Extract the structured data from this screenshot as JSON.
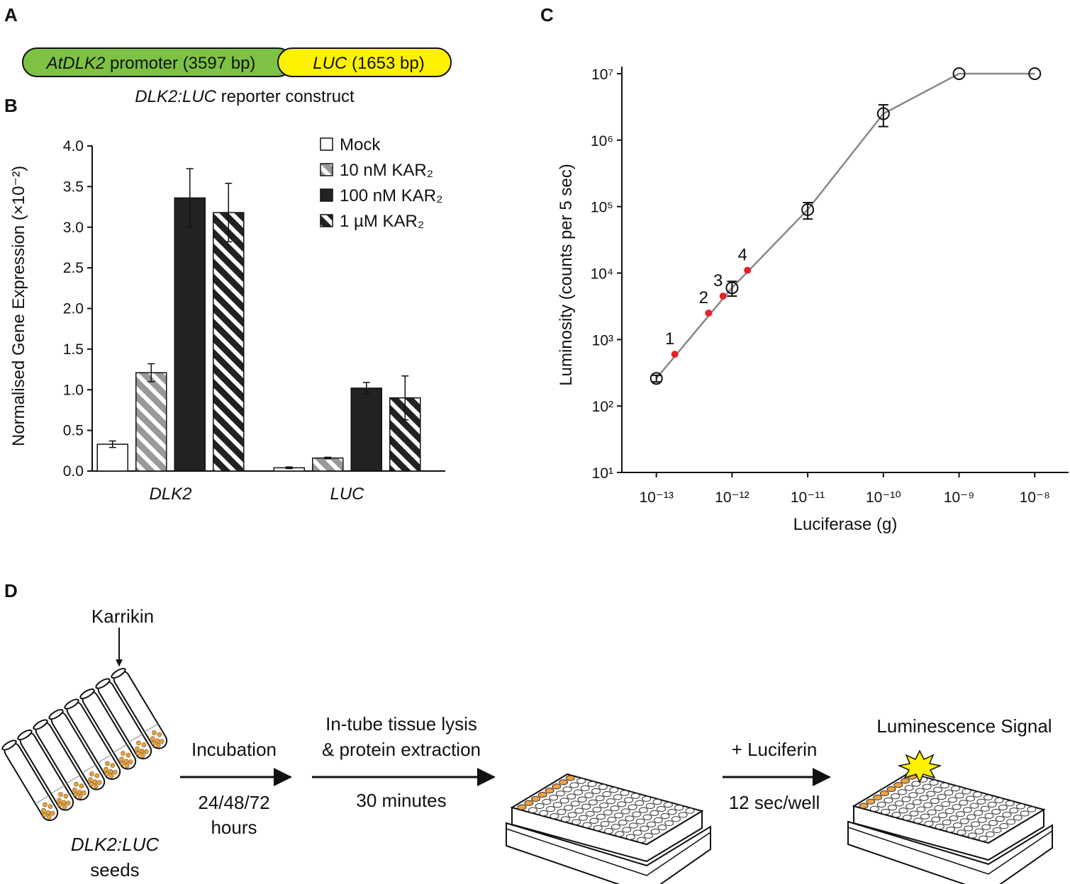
{
  "panel_labels": [
    "A",
    "B",
    "C",
    "D"
  ],
  "construct": {
    "promoter": {
      "italic": "AtDLK2",
      "text": " promoter (3597 bp)",
      "color": "#7dc242"
    },
    "gene": {
      "italic": "LUC",
      "text": " (1653 bp)",
      "color": "#fff200"
    },
    "caption": {
      "italic": "DLK2:LUC",
      "text": " reporter construct"
    }
  },
  "chart_data": [
    {
      "type": "bar",
      "ylabel": "Normalised Gene Expression (×10⁻²)",
      "categories": [
        "DLK2",
        "LUC"
      ],
      "series": [
        {
          "name": "Mock",
          "color": "#ffffff",
          "pattern": "solid",
          "values": [
            0.33,
            0.04
          ],
          "errors": [
            0.04,
            0.01
          ]
        },
        {
          "name": "10 nM KAR₂",
          "color": "#999999",
          "pattern": "hatch",
          "values": [
            1.21,
            0.16
          ],
          "errors": [
            0.11,
            0.01
          ]
        },
        {
          "name": "100 nM KAR₂",
          "color": "#222222",
          "pattern": "solid",
          "values": [
            3.36,
            1.02
          ],
          "errors": [
            0.36,
            0.07
          ]
        },
        {
          "name": "1 µM KAR₂",
          "color": "#222222",
          "pattern": "hatch",
          "values": [
            3.18,
            0.9
          ],
          "errors": [
            0.36,
            0.27
          ]
        }
      ],
      "ylim": [
        0,
        4
      ],
      "yticks": [
        {
          "value": 0,
          "label": "0.0"
        },
        0.5,
        {
          "value": 1,
          "label": "1.0"
        },
        1.5,
        {
          "value": 2,
          "label": "2.0"
        },
        2.5,
        {
          "value": 3,
          "label": "3.0"
        },
        3.5,
        {
          "value": 4,
          "label": "4.0"
        }
      ],
      "legend": "upper right"
    },
    {
      "type": "line",
      "xlabel": "Luciferase (g)",
      "ylabel": "Luminosity (counts per 5 sec)",
      "xscale": "log",
      "yscale": "log",
      "x": [
        1e-13,
        1e-12,
        1e-11,
        1e-10,
        1e-09,
        1e-08
      ],
      "series": [
        {
          "color": "#888888",
          "marker": "open-circle",
          "line": true,
          "values": [
            260,
            6000,
            90000,
            2500000,
            10000000,
            10000000
          ],
          "errors": [
            30,
            1500,
            25000,
            900000,
            0,
            0
          ]
        },
        {
          "color": "#e8202a",
          "marker": "dot",
          "line": false,
          "x": [
            1.75e-13,
            4.9e-13,
            7.6e-13,
            1.6e-12
          ],
          "values": [
            600,
            2500,
            4500,
            11000
          ],
          "point_labels": [
            "1",
            "2",
            "3",
            "4"
          ]
        }
      ],
      "xlim": [
        3.5e-14,
        2.8e-08
      ],
      "ylim": [
        10,
        10000000
      ],
      "xticks": [
        {
          "value": 1e-13,
          "label": "10⁻¹³"
        },
        {
          "value": 1e-12,
          "label": "10⁻¹²"
        },
        {
          "value": 1e-11,
          "label": "10⁻¹¹"
        },
        {
          "value": 1e-10,
          "label": "10⁻¹⁰"
        },
        {
          "value": 1e-09,
          "label": "10⁻⁹"
        },
        {
          "value": 1e-08,
          "label": "10⁻⁸"
        }
      ],
      "yticks": [
        {
          "value": 10,
          "label": "10¹"
        },
        {
          "value": 100,
          "label": "10²"
        },
        {
          "value": 1000,
          "label": "10³"
        },
        {
          "value": 10000,
          "label": "10⁴"
        },
        {
          "value": 100000,
          "label": "10⁵"
        },
        {
          "value": 1000000,
          "label": "10⁶"
        },
        {
          "value": 10000000,
          "label": "10⁷"
        }
      ]
    }
  ],
  "workflow": {
    "treatment": "Karrikin",
    "seeds": {
      "italic": "DLK2:LUC",
      "text": "seeds"
    },
    "step1": {
      "label": "Incubation",
      "time": [
        "24/48/72",
        "hours"
      ]
    },
    "step2": {
      "label": [
        "In-tube tissue lysis",
        "& protein extraction"
      ],
      "time": "30 minutes"
    },
    "step3": {
      "label": "+ Luciferin",
      "time": "12 sec/well"
    },
    "result": "Luminescence Signal"
  }
}
